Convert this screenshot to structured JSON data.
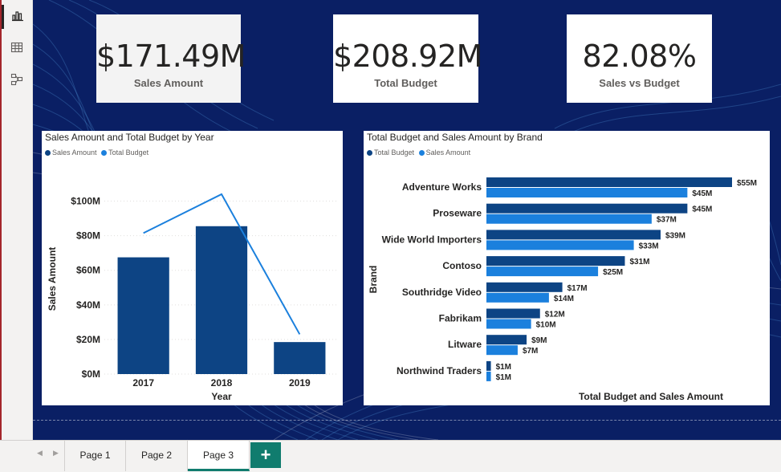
{
  "left_rail": {
    "items": [
      {
        "name": "report-view-icon",
        "active": true
      },
      {
        "name": "table-view-icon",
        "active": false
      },
      {
        "name": "model-view-icon",
        "active": false
      }
    ]
  },
  "cards": {
    "sales": {
      "value": "$171.49M",
      "label": "Sales Amount"
    },
    "budget": {
      "value": "$208.92M",
      "label": "Total Budget"
    },
    "ratio": {
      "value": "82.08%",
      "label": "Sales vs Budget"
    }
  },
  "chart_year": {
    "title": "Sales Amount and Total Budget by Year",
    "legend": [
      "Sales Amount",
      "Total Budget"
    ]
  },
  "chart_brand": {
    "title": "Total Budget and Sales Amount by Brand",
    "legend": [
      "Total Budget",
      "Sales Amount"
    ]
  },
  "colors": {
    "dark_blue": "#0d4484",
    "bright_blue": "#1b80dd",
    "canvas": "#0a1f64",
    "tab_accent": "#107c6e"
  },
  "chart_data": [
    {
      "type": "bar",
      "subtype": "combo bar + line",
      "title": "Sales Amount and Total Budget by Year",
      "xlabel": "Year",
      "ylabel": "Sales Amount",
      "categories": [
        "2017",
        "2018",
        "2019"
      ],
      "series": [
        {
          "name": "Sales Amount",
          "kind": "bar",
          "color": "#0d4484",
          "values": [
            67.5,
            85.5,
            18.5
          ]
        },
        {
          "name": "Total Budget",
          "kind": "line",
          "color": "#1b80dd",
          "values": [
            81.5,
            104,
            23
          ]
        }
      ],
      "ylim": [
        0,
        110
      ],
      "yticks": [
        0,
        20,
        40,
        60,
        80,
        100
      ],
      "ytick_labels": [
        "$0M",
        "$20M",
        "$40M",
        "$60M",
        "$80M",
        "$100M"
      ],
      "grid": true,
      "legend_position": "top-left"
    },
    {
      "type": "bar",
      "orientation": "horizontal",
      "title": "Total Budget and Sales Amount by Brand",
      "xlabel": "Total Budget and Sales Amount",
      "ylabel": "Brand",
      "categories": [
        "Adventure Works",
        "Proseware",
        "Wide World Importers",
        "Contoso",
        "Southridge Video",
        "Fabrikam",
        "Litware",
        "Northwind Traders"
      ],
      "series": [
        {
          "name": "Total Budget",
          "color": "#0d4484",
          "values": [
            55,
            45,
            39,
            31,
            17,
            12,
            9,
            1
          ],
          "labels": [
            "$55M",
            "$45M",
            "$39M",
            "$31M",
            "$17M",
            "$12M",
            "$9M",
            "$1M"
          ]
        },
        {
          "name": "Sales Amount",
          "color": "#1b80dd",
          "values": [
            45,
            37,
            33,
            25,
            14,
            10,
            7,
            1
          ],
          "labels": [
            "$45M",
            "$37M",
            "$33M",
            "$25M",
            "$14M",
            "$10M",
            "$7M",
            "$1M"
          ]
        }
      ],
      "legend_position": "top-left"
    }
  ],
  "tabs": {
    "items": [
      "Page 1",
      "Page 2",
      "Page 3"
    ],
    "active": "Page 3",
    "add_label": "+"
  }
}
